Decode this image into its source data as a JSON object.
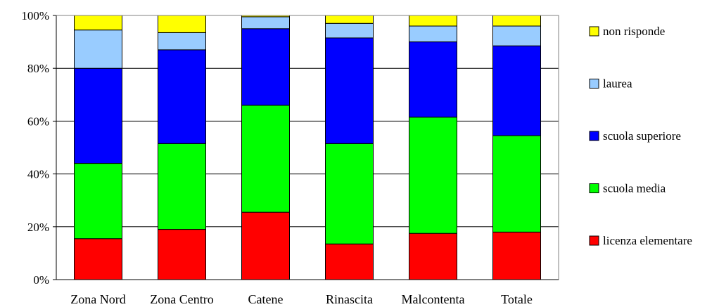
{
  "chart_data": {
    "type": "bar",
    "stacked": true,
    "percent": true,
    "title": "",
    "xlabel": "",
    "ylabel": "",
    "ylim": [
      0,
      100
    ],
    "yticks": [
      "0%",
      "20%",
      "40%",
      "60%",
      "80%",
      "100%"
    ],
    "grid": true,
    "legend_position": "right",
    "categories": [
      "Zona Nord",
      "Zona Centro",
      "Catene",
      "Rinascita",
      "Malcontenta",
      "Totale"
    ],
    "series": [
      {
        "name": "licenza elementare",
        "color": "#ff0000",
        "values": [
          15.5,
          19.0,
          25.5,
          13.5,
          17.5,
          18.0
        ]
      },
      {
        "name": "scuola media",
        "color": "#00ff00",
        "values": [
          28.5,
          32.5,
          40.5,
          38.0,
          44.0,
          36.5
        ]
      },
      {
        "name": "scuola superiore",
        "color": "#0000ff",
        "values": [
          36.0,
          35.5,
          29.0,
          40.0,
          28.5,
          34.0
        ]
      },
      {
        "name": "laurea",
        "color": "#99ccff",
        "values": [
          14.5,
          6.5,
          4.5,
          5.5,
          6.0,
          7.5
        ]
      },
      {
        "name": "non risponde",
        "color": "#ffff00",
        "values": [
          5.5,
          6.5,
          0.5,
          3.0,
          4.0,
          4.0
        ]
      }
    ],
    "legend_order": [
      "non risponde",
      "laurea",
      "scuola superiore",
      "scuola media",
      "licenza elementare"
    ]
  }
}
